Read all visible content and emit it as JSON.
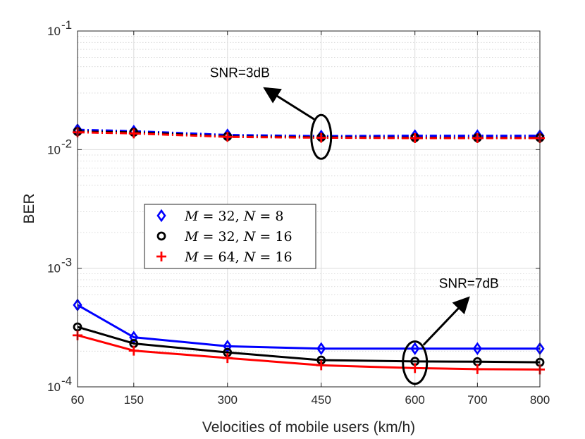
{
  "chart_data": {
    "type": "line",
    "xlabel": "Velocities of mobile users (km/h)",
    "ylabel": "BER",
    "yscale": "log",
    "ylim": [
      0.0001,
      0.1
    ],
    "x": [
      60,
      150,
      300,
      450,
      600,
      700,
      800
    ],
    "x_tick_labels": [
      "60",
      "150",
      "300",
      "450",
      "600",
      "700",
      "800"
    ],
    "y_ticks": [
      {
        "value": 0.1,
        "base": "10",
        "exp": "-1"
      },
      {
        "value": 0.01,
        "base": "10",
        "exp": "-2"
      },
      {
        "value": 0.001,
        "base": "10",
        "exp": "-3"
      },
      {
        "value": 0.0001,
        "base": "10",
        "exp": "-4"
      }
    ],
    "grid": true,
    "series": [
      {
        "name": "M = 32, N = 8",
        "snr": "3dB",
        "color": "#0000ff",
        "marker": "diamond",
        "line": "dashed",
        "values": [
          0.0147,
          0.0143,
          0.0133,
          0.013,
          0.0131,
          0.0131,
          0.0131
        ]
      },
      {
        "name": "M = 32, N = 16",
        "snr": "3dB",
        "color": "#000000",
        "marker": "circle",
        "line": "dashed",
        "values": [
          0.0142,
          0.014,
          0.0129,
          0.0127,
          0.0126,
          0.0126,
          0.0126
        ]
      },
      {
        "name": "M = 64, N = 16",
        "snr": "3dB",
        "color": "#ff0000",
        "marker": "plus",
        "line": "dashed",
        "values": [
          0.014,
          0.0137,
          0.0128,
          0.0126,
          0.0125,
          0.0125,
          0.0125
        ]
      },
      {
        "name": "M = 32, N = 8",
        "snr": "7dB",
        "color": "#0000ff",
        "marker": "diamond",
        "line": "solid",
        "values": [
          0.00049,
          0.000262,
          0.00022,
          0.00021,
          0.00021,
          0.00021,
          0.00021
        ]
      },
      {
        "name": "M = 32, N = 16",
        "snr": "7dB",
        "color": "#000000",
        "marker": "circle",
        "line": "solid",
        "values": [
          0.00032,
          0.000232,
          0.000195,
          0.000168,
          0.000164,
          0.000163,
          0.000161
        ]
      },
      {
        "name": "M = 64, N = 16",
        "snr": "7dB",
        "color": "#ff0000",
        "marker": "plus",
        "line": "solid",
        "values": [
          0.000272,
          0.000202,
          0.000175,
          0.000152,
          0.000144,
          0.000141,
          0.00014
        ]
      }
    ],
    "legend": {
      "placement": "center-left",
      "entries": [
        {
          "marker": "diamond",
          "color": "#0000ff",
          "M": "32",
          "N": "8"
        },
        {
          "marker": "circle",
          "color": "#000000",
          "M": "32",
          "N": "16"
        },
        {
          "marker": "plus",
          "color": "#ff0000",
          "M": "64",
          "N": "16"
        }
      ]
    },
    "annotations": [
      {
        "text": "SNR=3dB",
        "target_x": 450,
        "target_y": 0.0128
      },
      {
        "text": "SNR=7dB",
        "target_x": 600,
        "target_y": 0.00016
      }
    ]
  }
}
